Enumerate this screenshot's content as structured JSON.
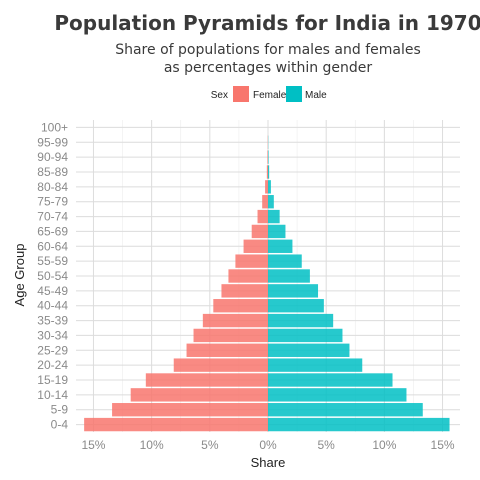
{
  "chart_data": {
    "type": "bar",
    "orientation": "horizontal",
    "title": "Population Pyramids for India in 1970",
    "subtitle_lines": [
      "Share of populations for males and females",
      "as percentages within gender"
    ],
    "xlabel": "Share",
    "ylabel": "Age Group",
    "legend_title": "Sex",
    "legend_position": "top",
    "categories": [
      "0-4",
      "5-9",
      "10-14",
      "15-19",
      "20-24",
      "25-29",
      "30-34",
      "35-39",
      "40-44",
      "45-49",
      "50-54",
      "55-59",
      "60-64",
      "65-69",
      "70-74",
      "75-79",
      "80-84",
      "85-89",
      "90-94",
      "95-99",
      "100+"
    ],
    "series": [
      {
        "name": "Female",
        "color": "#F8766D",
        "values": [
          15.8,
          13.4,
          11.8,
          10.5,
          8.1,
          7.0,
          6.4,
          5.6,
          4.7,
          4.0,
          3.4,
          2.8,
          2.1,
          1.4,
          0.9,
          0.5,
          0.25,
          0.1,
          0.05,
          0.02,
          0.0
        ]
      },
      {
        "name": "Male",
        "color": "#00BFC4",
        "values": [
          15.6,
          13.3,
          11.9,
          10.7,
          8.1,
          7.0,
          6.4,
          5.6,
          4.8,
          4.3,
          3.6,
          2.9,
          2.1,
          1.5,
          1.0,
          0.5,
          0.25,
          0.1,
          0.05,
          0.02,
          0.0
        ]
      }
    ],
    "xlim": [
      -16.5,
      16.5
    ],
    "x_ticks": [
      -15,
      -10,
      -5,
      0,
      5,
      10,
      15
    ],
    "x_tick_labels": [
      "15%",
      "10%",
      "5%",
      "0%",
      "5%",
      "10%",
      "15%"
    ],
    "grid": true
  }
}
